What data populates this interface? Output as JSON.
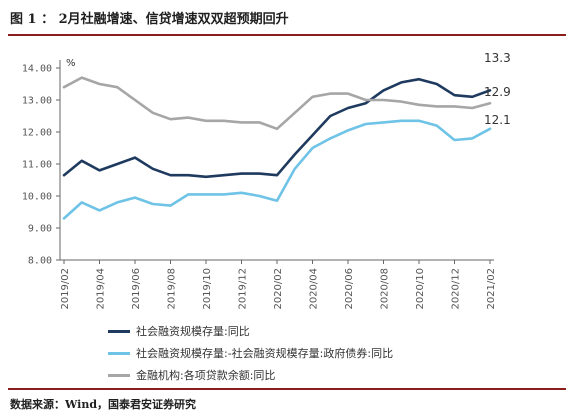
{
  "title": "图 1 ： 2月社融增速、信贷增速双双超预期回升",
  "source": "数据来源：Wind，国泰君安证券研究",
  "colors": {
    "accent_rule": "#8c1d1d",
    "axis": "#666666"
  },
  "chart_data": {
    "type": "line",
    "ylabel": "%",
    "ylim": [
      8.0,
      14.0
    ],
    "yticks": [
      "8.00",
      "9.00",
      "10.00",
      "11.00",
      "12.00",
      "13.00",
      "14.00"
    ],
    "categories": [
      "2019/02",
      "2019/04",
      "2019/06",
      "2019/08",
      "2019/10",
      "2019/12",
      "2020/02",
      "2020/04",
      "2020/06",
      "2020/08",
      "2020/10",
      "2020/12",
      "2021/02"
    ],
    "series": [
      {
        "name": "社会融资规模存量:同比",
        "color": "#1f3a5f",
        "x": [
          0,
          0.5,
          1,
          1.5,
          2,
          2.5,
          3,
          3.5,
          4,
          4.5,
          5,
          5.5,
          6,
          6.5,
          7,
          7.5,
          8,
          8.5,
          9,
          9.5,
          10,
          10.5,
          11,
          11.5,
          12
        ],
        "values": [
          10.65,
          11.1,
          10.8,
          11.0,
          11.2,
          10.85,
          10.65,
          10.65,
          10.6,
          10.65,
          10.7,
          10.7,
          10.65,
          11.3,
          11.9,
          12.5,
          12.75,
          12.9,
          13.3,
          13.55,
          13.65,
          13.5,
          13.15,
          13.1,
          13.3
        ]
      },
      {
        "name": "社会融资规模存量:-社会融资规模存量:政府债券:同比",
        "color": "#6ec3e6",
        "x": [
          0,
          0.5,
          1,
          1.5,
          2,
          2.5,
          3,
          3.5,
          4,
          4.5,
          5,
          5.5,
          6,
          6.5,
          7,
          7.5,
          8,
          8.5,
          9,
          9.5,
          10,
          10.5,
          11,
          11.5,
          12
        ],
        "values": [
          9.3,
          9.8,
          9.55,
          9.8,
          9.95,
          9.75,
          9.7,
          10.05,
          10.05,
          10.05,
          10.1,
          10.0,
          9.85,
          10.85,
          11.5,
          11.8,
          12.05,
          12.25,
          12.3,
          12.35,
          12.35,
          12.2,
          11.75,
          11.8,
          12.1
        ]
      },
      {
        "name": "金融机构:各项贷款余额:同比",
        "color": "#a6a6a6",
        "x": [
          0,
          0.5,
          1,
          1.5,
          2,
          2.5,
          3,
          3.5,
          4,
          4.5,
          5,
          5.5,
          6,
          6.5,
          7,
          7.5,
          8,
          8.5,
          9,
          9.5,
          10,
          10.5,
          11,
          11.5,
          12
        ],
        "values": [
          13.4,
          13.7,
          13.5,
          13.4,
          13.0,
          12.6,
          12.4,
          12.45,
          12.35,
          12.35,
          12.3,
          12.3,
          12.1,
          12.6,
          13.1,
          13.2,
          13.2,
          13.0,
          13.0,
          12.95,
          12.85,
          12.8,
          12.8,
          12.75,
          12.9
        ]
      }
    ],
    "end_labels": [
      "13.3",
      "12.9",
      "12.1"
    ],
    "grid": false,
    "legend_position": "bottom"
  }
}
